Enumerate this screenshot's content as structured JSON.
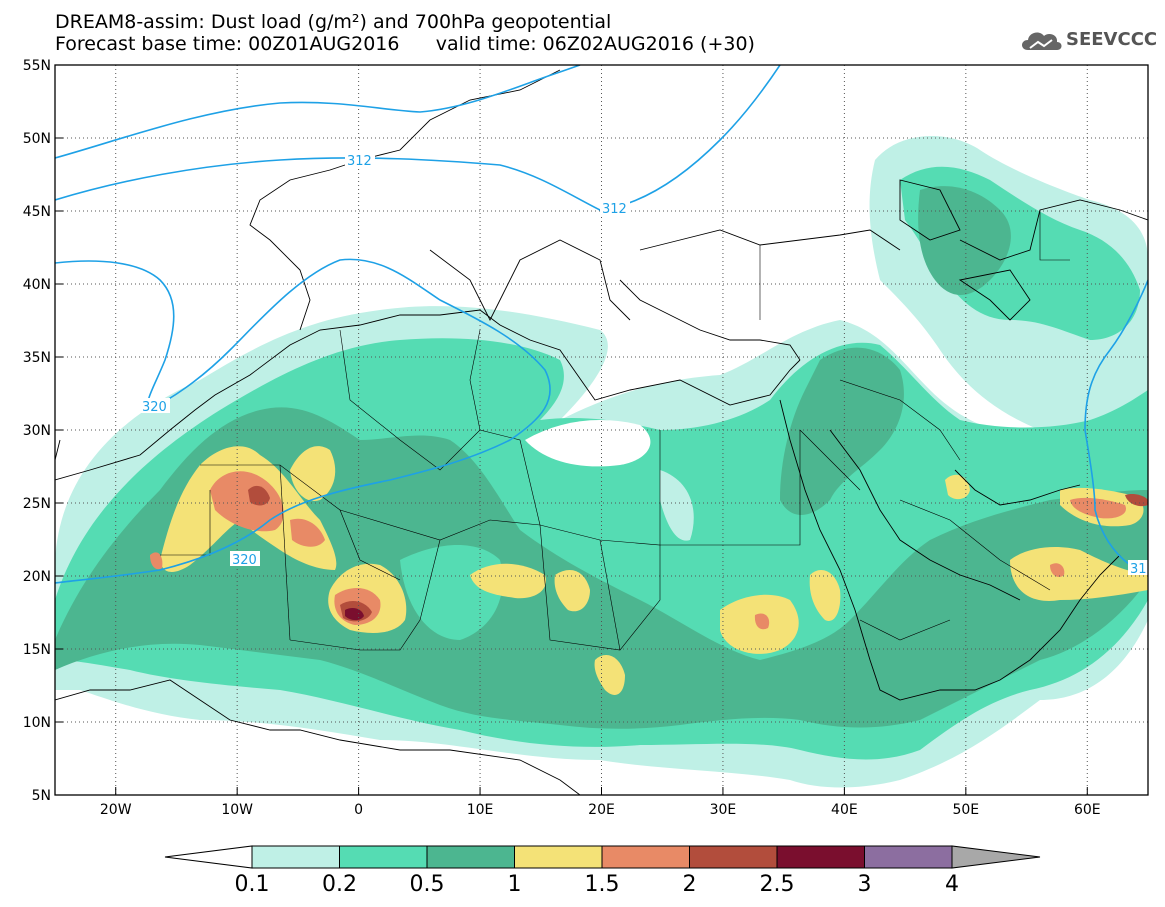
{
  "title": {
    "line1": "DREAM8-assim: Dust load (g/m²) and 700hPa geopotential",
    "line2": "Forecast base time: 00Z01AUG2016      valid time: 06Z02AUG2016 (+30)"
  },
  "logo": {
    "icon": "cloud-icon",
    "text": "SEEVCCC"
  },
  "axes": {
    "lon_range": [
      -25,
      65
    ],
    "lat_range": [
      5,
      55
    ],
    "lon_ticks": [
      {
        "v": -20,
        "label": "20W"
      },
      {
        "v": -10,
        "label": "10W"
      },
      {
        "v": 0,
        "label": "0"
      },
      {
        "v": 10,
        "label": "10E"
      },
      {
        "v": 20,
        "label": "20E"
      },
      {
        "v": 30,
        "label": "30E"
      },
      {
        "v": 40,
        "label": "40E"
      },
      {
        "v": 50,
        "label": "50E"
      },
      {
        "v": 60,
        "label": "60E"
      }
    ],
    "lat_ticks": [
      {
        "v": 55,
        "label": "55N"
      },
      {
        "v": 50,
        "label": "50N"
      },
      {
        "v": 45,
        "label": "45N"
      },
      {
        "v": 40,
        "label": "40N"
      },
      {
        "v": 35,
        "label": "35N"
      },
      {
        "v": 30,
        "label": "30N"
      },
      {
        "v": 25,
        "label": "25N"
      },
      {
        "v": 20,
        "label": "20N"
      },
      {
        "v": 15,
        "label": "15N"
      },
      {
        "v": 10,
        "label": "10N"
      },
      {
        "v": 5,
        "label": "5N"
      }
    ],
    "grid": "dotted"
  },
  "contours": [
    {
      "label": "312",
      "color": "#1ea1e6"
    },
    {
      "label": "320",
      "color": "#1ea1e6"
    },
    {
      "label": "31",
      "color": "#1ea1e6"
    }
  ],
  "colorbar": {
    "levels": [
      "0.1",
      "0.2",
      "0.5",
      "1",
      "1.5",
      "2",
      "2.5",
      "3",
      "4"
    ],
    "colors": [
      "#bff0e6",
      "#55dcb3",
      "#4cb690",
      "#f4e277",
      "#e88a66",
      "#b24d3c",
      "#7a0e2e",
      "#8c6ea0"
    ],
    "over_color": "#a8a8a8",
    "under_color": "#ffffff"
  }
}
